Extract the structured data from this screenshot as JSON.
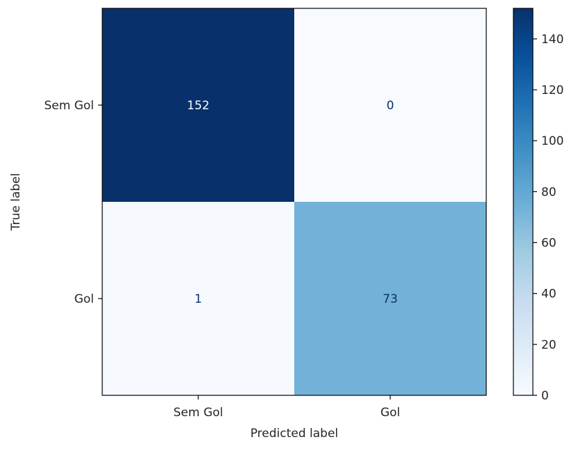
{
  "chart_data": {
    "type": "heatmap",
    "title": "",
    "xlabel": "Predicted label",
    "ylabel": "True label",
    "x_categories": [
      "Sem Gol",
      "Gol"
    ],
    "y_categories": [
      "Sem Gol",
      "Gol"
    ],
    "values": [
      [
        152,
        0
      ],
      [
        1,
        73
      ]
    ],
    "colormap": "Blues",
    "colorbar": {
      "range": [
        0,
        152
      ],
      "ticks": [
        0,
        20,
        40,
        60,
        80,
        100,
        120,
        140
      ]
    }
  }
}
